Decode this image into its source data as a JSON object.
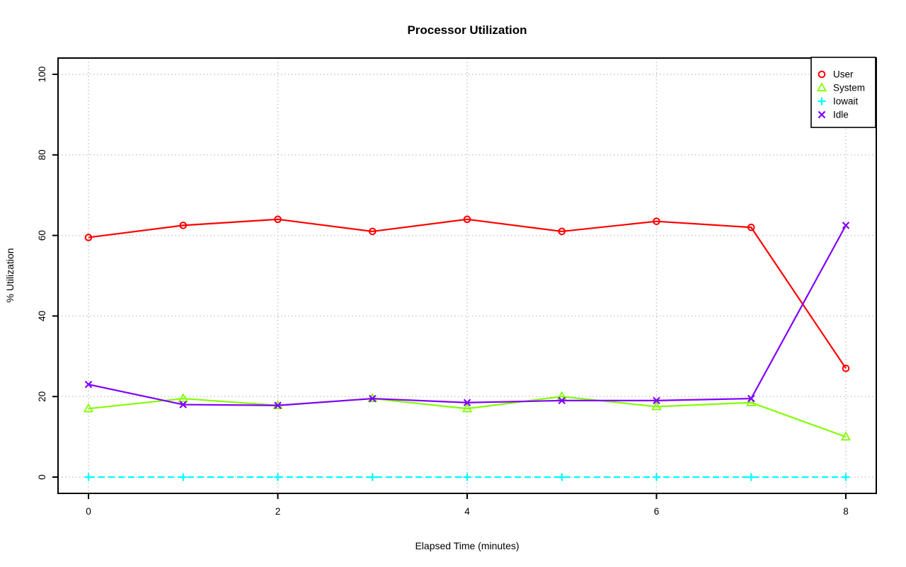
{
  "chart_data": {
    "type": "line",
    "title": "Processor Utilization",
    "xlabel": "Elapsed Time (minutes)",
    "ylabel": "% Utilization",
    "x": [
      0,
      1,
      2,
      3,
      4,
      5,
      6,
      7,
      8
    ],
    "xlim": [
      0,
      8
    ],
    "ylim": [
      0,
      100
    ],
    "x_ticks": [
      0,
      2,
      4,
      6,
      8
    ],
    "y_ticks": [
      0,
      20,
      40,
      60,
      80,
      100
    ],
    "grid": true,
    "grid_style": "dotted",
    "grid_color": "#c8c8c8",
    "frame_color": "#000000",
    "legend_position": "top-right",
    "series": [
      {
        "name": "User",
        "color": "#ff0000",
        "marker": "circle",
        "line": "solid",
        "values": [
          59.5,
          62.5,
          64,
          61,
          64,
          61,
          63.5,
          62,
          27
        ]
      },
      {
        "name": "System",
        "color": "#80ff00",
        "marker": "triangle",
        "line": "solid",
        "values": [
          17,
          19.5,
          17.8,
          19.5,
          17,
          20,
          17.5,
          18.5,
          10
        ]
      },
      {
        "name": "Iowait",
        "color": "#00ffff",
        "marker": "plus",
        "line": "dashed",
        "values": [
          0,
          0,
          0,
          0,
          0,
          0,
          0,
          0,
          0
        ]
      },
      {
        "name": "Idle",
        "color": "#8000ff",
        "marker": "x",
        "line": "solid",
        "values": [
          23,
          18,
          17.8,
          19.5,
          18.5,
          19,
          19,
          19.5,
          62.5
        ]
      }
    ]
  }
}
